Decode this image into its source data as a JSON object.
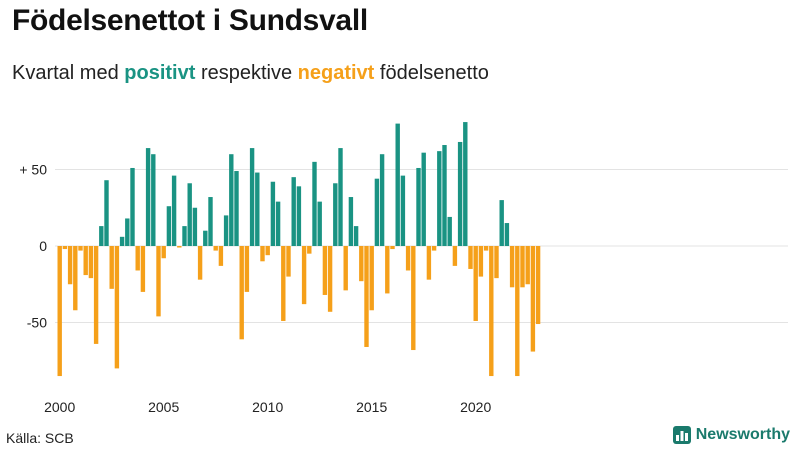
{
  "title": "Födelsenettot i Sundsvall",
  "subtitle": {
    "part1": "Kvartal med ",
    "positive_word": "positivt",
    "part2": " respektive ",
    "negative_word": "negativt",
    "part3": " födelsenetto"
  },
  "colors": {
    "positive": "#1a9383",
    "negative": "#f5a01a",
    "brand": "#1a7a6c"
  },
  "source": "Källa: SCB",
  "brand": {
    "name": "Newsworthy",
    "icon": "bar-chart-icon"
  },
  "chart_data": {
    "type": "bar",
    "title": "Födelsenettot i Sundsvall",
    "xlabel": "",
    "ylabel": "",
    "ylim": [
      -90,
      85
    ],
    "yticks": [
      50,
      0,
      -50
    ],
    "ytick_labels": [
      "+ 50",
      "0",
      "-50"
    ],
    "xtick_labels": [
      "2000",
      "2005",
      "2010",
      "2015",
      "2020"
    ],
    "xtick_years": [
      2000,
      2005,
      2010,
      2015,
      2020
    ],
    "start_year": 2000,
    "periods_per_year": 4,
    "grid": true,
    "values": [
      -85,
      -2,
      -25,
      -42,
      -3,
      -19,
      -21,
      -64,
      13,
      43,
      -28,
      -80,
      6,
      18,
      51,
      -16,
      -30,
      64,
      60,
      -46,
      -8,
      26,
      46,
      -1,
      13,
      41,
      25,
      -22,
      10,
      32,
      -3,
      -13,
      20,
      60,
      49,
      -61,
      -30,
      64,
      48,
      -10,
      -6,
      42,
      29,
      -49,
      -20,
      45,
      39,
      -38,
      -5,
      55,
      29,
      -32,
      -43,
      41,
      64,
      -29,
      32,
      13,
      -23,
      -66,
      -42,
      44,
      60,
      -31,
      -2,
      80,
      46,
      -16,
      -68,
      51,
      61,
      -22,
      -3,
      62,
      66,
      19,
      -13,
      68,
      81,
      -15,
      -49,
      -20,
      -3,
      -85,
      -21,
      30,
      15,
      -27,
      -85,
      -27,
      -25,
      -69,
      -51
    ]
  }
}
